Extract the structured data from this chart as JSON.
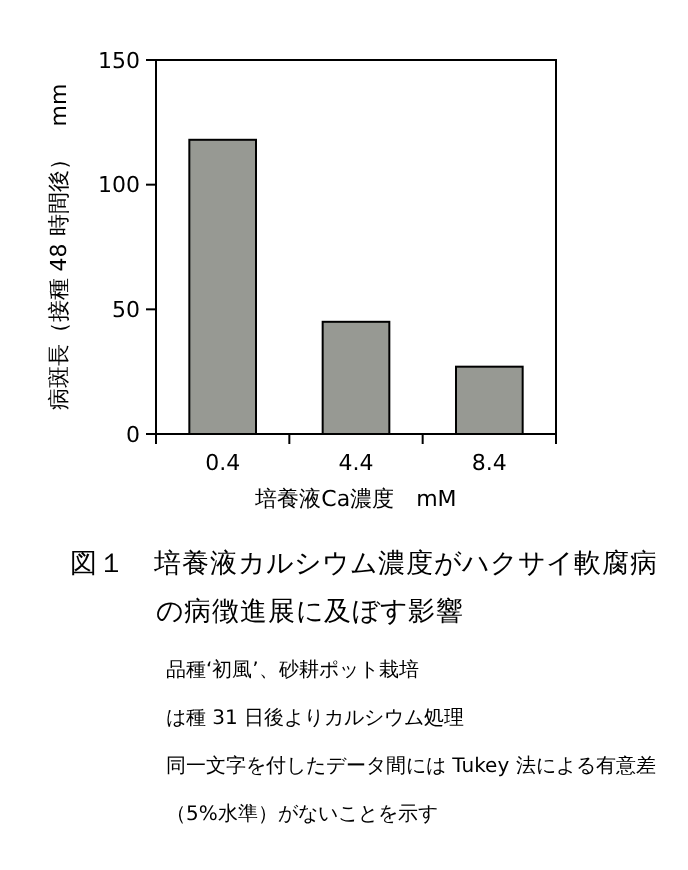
{
  "chart_data": {
    "type": "bar",
    "title": "図１　培養液カルシウム濃度がハクサイ軟腐病の病徴進展に及ぼす影響",
    "xlabel": "培養液Ca濃度　mM",
    "ylabel": "病斑長（接種 48 時間後）　mm",
    "categories": [
      "0.4",
      "4.4",
      "8.4"
    ],
    "values": [
      118,
      45,
      27
    ],
    "color": "#979993",
    "ylim": [
      0,
      150
    ],
    "yticks": [
      0,
      50,
      100,
      150
    ],
    "grid": false,
    "annotations": [
      "品種‘初風’、砂耕ポット栽培",
      "は種 31 日後よりカルシウム処理",
      "同一文字を付したデータ間には Tukey 法による有意差（5%水準）がないことを示す"
    ]
  }
}
